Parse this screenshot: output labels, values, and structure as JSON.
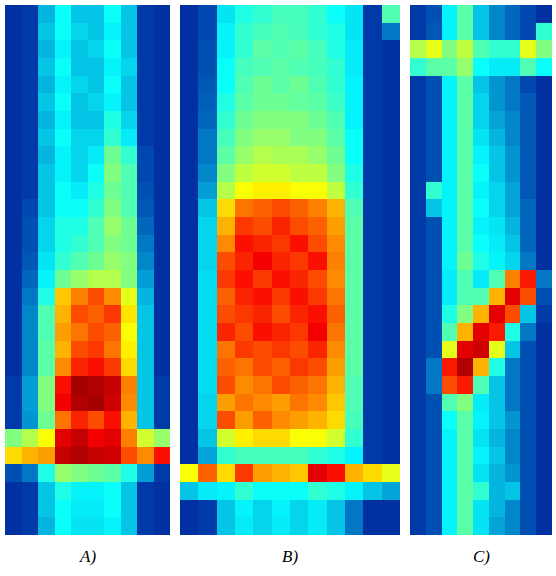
{
  "chart_data": [
    {
      "type": "heatmap",
      "title": "A)",
      "zlim": [
        0,
        1
      ],
      "tick_labels": false,
      "z": [
        [
          0.1,
          0.12,
          0.28,
          0.38,
          0.3,
          0.3,
          0.38,
          0.3,
          0.12,
          0.1
        ],
        [
          0.1,
          0.12,
          0.3,
          0.38,
          0.32,
          0.3,
          0.36,
          0.3,
          0.12,
          0.1
        ],
        [
          0.1,
          0.12,
          0.28,
          0.36,
          0.3,
          0.32,
          0.38,
          0.3,
          0.12,
          0.1
        ],
        [
          0.1,
          0.12,
          0.3,
          0.38,
          0.3,
          0.3,
          0.36,
          0.32,
          0.12,
          0.1
        ],
        [
          0.1,
          0.12,
          0.28,
          0.36,
          0.32,
          0.3,
          0.38,
          0.3,
          0.12,
          0.1
        ],
        [
          0.1,
          0.12,
          0.3,
          0.38,
          0.3,
          0.32,
          0.36,
          0.3,
          0.12,
          0.1
        ],
        [
          0.1,
          0.12,
          0.28,
          0.36,
          0.3,
          0.3,
          0.4,
          0.32,
          0.12,
          0.1
        ],
        [
          0.1,
          0.12,
          0.3,
          0.38,
          0.32,
          0.32,
          0.42,
          0.35,
          0.12,
          0.1
        ],
        [
          0.1,
          0.12,
          0.28,
          0.36,
          0.32,
          0.35,
          0.48,
          0.42,
          0.14,
          0.1
        ],
        [
          0.1,
          0.12,
          0.3,
          0.36,
          0.32,
          0.38,
          0.5,
          0.45,
          0.14,
          0.1
        ],
        [
          0.1,
          0.12,
          0.3,
          0.38,
          0.35,
          0.4,
          0.48,
          0.45,
          0.15,
          0.1
        ],
        [
          0.1,
          0.14,
          0.3,
          0.38,
          0.38,
          0.42,
          0.5,
          0.45,
          0.16,
          0.1
        ],
        [
          0.1,
          0.15,
          0.32,
          0.4,
          0.4,
          0.45,
          0.52,
          0.48,
          0.18,
          0.1
        ],
        [
          0.1,
          0.15,
          0.32,
          0.4,
          0.42,
          0.45,
          0.5,
          0.48,
          0.2,
          0.1
        ],
        [
          0.1,
          0.16,
          0.34,
          0.42,
          0.45,
          0.48,
          0.52,
          0.5,
          0.22,
          0.1
        ],
        [
          0.1,
          0.18,
          0.36,
          0.48,
          0.52,
          0.55,
          0.55,
          0.5,
          0.25,
          0.1
        ],
        [
          0.1,
          0.2,
          0.4,
          0.68,
          0.75,
          0.8,
          0.74,
          0.6,
          0.28,
          0.1
        ],
        [
          0.1,
          0.22,
          0.45,
          0.7,
          0.8,
          0.78,
          0.82,
          0.65,
          0.3,
          0.1
        ],
        [
          0.1,
          0.22,
          0.45,
          0.72,
          0.76,
          0.8,
          0.78,
          0.62,
          0.3,
          0.1
        ],
        [
          0.1,
          0.22,
          0.46,
          0.7,
          0.8,
          0.82,
          0.76,
          0.64,
          0.3,
          0.1
        ],
        [
          0.1,
          0.22,
          0.46,
          0.74,
          0.84,
          0.86,
          0.82,
          0.66,
          0.3,
          0.1
        ],
        [
          0.12,
          0.25,
          0.5,
          0.86,
          0.96,
          0.95,
          0.93,
          0.75,
          0.3,
          0.12
        ],
        [
          0.12,
          0.25,
          0.5,
          0.88,
          0.95,
          0.96,
          0.92,
          0.74,
          0.3,
          0.12
        ],
        [
          0.12,
          0.24,
          0.48,
          0.76,
          0.84,
          0.8,
          0.86,
          0.7,
          0.3,
          0.12
        ],
        [
          0.5,
          0.55,
          0.62,
          0.9,
          0.93,
          0.88,
          0.9,
          0.75,
          0.58,
          0.52
        ],
        [
          0.66,
          0.7,
          0.72,
          0.93,
          0.95,
          0.93,
          0.92,
          0.8,
          0.74,
          0.86
        ],
        [
          0.15,
          0.2,
          0.4,
          0.52,
          0.5,
          0.48,
          0.46,
          0.4,
          0.25,
          0.12
        ],
        [
          0.1,
          0.12,
          0.3,
          0.4,
          0.36,
          0.36,
          0.38,
          0.3,
          0.12,
          0.1
        ],
        [
          0.1,
          0.12,
          0.3,
          0.38,
          0.35,
          0.35,
          0.38,
          0.3,
          0.12,
          0.1
        ],
        [
          0.1,
          0.12,
          0.28,
          0.38,
          0.34,
          0.34,
          0.36,
          0.3,
          0.12,
          0.1
        ]
      ]
    },
    {
      "type": "heatmap",
      "title": "B)",
      "zlim": [
        0,
        1
      ],
      "tick_labels": false,
      "z": [
        [
          0.1,
          0.14,
          0.34,
          0.4,
          0.42,
          0.44,
          0.44,
          0.42,
          0.38,
          0.34,
          0.12,
          0.45
        ],
        [
          0.1,
          0.14,
          0.36,
          0.42,
          0.44,
          0.45,
          0.44,
          0.42,
          0.4,
          0.34,
          0.12,
          0.2
        ],
        [
          0.1,
          0.15,
          0.36,
          0.42,
          0.46,
          0.45,
          0.46,
          0.44,
          0.4,
          0.35,
          0.12,
          0.1
        ],
        [
          0.1,
          0.15,
          0.38,
          0.44,
          0.45,
          0.46,
          0.45,
          0.44,
          0.42,
          0.35,
          0.12,
          0.1
        ],
        [
          0.1,
          0.16,
          0.38,
          0.45,
          0.48,
          0.46,
          0.48,
          0.45,
          0.42,
          0.36,
          0.12,
          0.1
        ],
        [
          0.1,
          0.17,
          0.4,
          0.46,
          0.48,
          0.48,
          0.47,
          0.46,
          0.43,
          0.36,
          0.12,
          0.1
        ],
        [
          0.1,
          0.18,
          0.42,
          0.48,
          0.5,
          0.5,
          0.5,
          0.48,
          0.45,
          0.36,
          0.12,
          0.1
        ],
        [
          0.1,
          0.2,
          0.44,
          0.5,
          0.52,
          0.52,
          0.5,
          0.5,
          0.46,
          0.38,
          0.12,
          0.1
        ],
        [
          0.1,
          0.2,
          0.46,
          0.52,
          0.55,
          0.54,
          0.54,
          0.52,
          0.48,
          0.38,
          0.12,
          0.1
        ],
        [
          0.1,
          0.22,
          0.5,
          0.56,
          0.58,
          0.58,
          0.56,
          0.56,
          0.5,
          0.4,
          0.12,
          0.1
        ],
        [
          0.1,
          0.25,
          0.55,
          0.62,
          0.64,
          0.64,
          0.62,
          0.62,
          0.56,
          0.42,
          0.12,
          0.1
        ],
        [
          0.1,
          0.3,
          0.66,
          0.76,
          0.78,
          0.8,
          0.78,
          0.75,
          0.7,
          0.45,
          0.12,
          0.1
        ],
        [
          0.1,
          0.32,
          0.7,
          0.82,
          0.8,
          0.84,
          0.8,
          0.78,
          0.72,
          0.46,
          0.12,
          0.1
        ],
        [
          0.1,
          0.32,
          0.74,
          0.86,
          0.84,
          0.82,
          0.86,
          0.8,
          0.74,
          0.46,
          0.12,
          0.1
        ],
        [
          0.1,
          0.32,
          0.8,
          0.84,
          0.88,
          0.84,
          0.82,
          0.86,
          0.75,
          0.46,
          0.12,
          0.1
        ],
        [
          0.1,
          0.33,
          0.82,
          0.86,
          0.82,
          0.86,
          0.84,
          0.8,
          0.74,
          0.46,
          0.12,
          0.1
        ],
        [
          0.1,
          0.33,
          0.78,
          0.84,
          0.86,
          0.82,
          0.86,
          0.82,
          0.76,
          0.46,
          0.12,
          0.1
        ],
        [
          0.1,
          0.33,
          0.8,
          0.82,
          0.84,
          0.8,
          0.84,
          0.86,
          0.78,
          0.46,
          0.12,
          0.1
        ],
        [
          0.1,
          0.33,
          0.84,
          0.8,
          0.86,
          0.84,
          0.82,
          0.88,
          0.76,
          0.46,
          0.12,
          0.1
        ],
        [
          0.1,
          0.33,
          0.76,
          0.82,
          0.8,
          0.82,
          0.8,
          0.84,
          0.74,
          0.46,
          0.12,
          0.1
        ],
        [
          0.1,
          0.33,
          0.78,
          0.76,
          0.8,
          0.78,
          0.82,
          0.8,
          0.72,
          0.46,
          0.12,
          0.1
        ],
        [
          0.1,
          0.33,
          0.8,
          0.74,
          0.76,
          0.8,
          0.78,
          0.76,
          0.7,
          0.45,
          0.12,
          0.1
        ],
        [
          0.1,
          0.32,
          0.72,
          0.76,
          0.74,
          0.72,
          0.76,
          0.74,
          0.68,
          0.45,
          0.12,
          0.1
        ],
        [
          0.1,
          0.32,
          0.8,
          0.72,
          0.78,
          0.74,
          0.72,
          0.7,
          0.66,
          0.44,
          0.12,
          0.1
        ],
        [
          0.1,
          0.3,
          0.58,
          0.64,
          0.66,
          0.66,
          0.62,
          0.62,
          0.58,
          0.42,
          0.12,
          0.1
        ],
        [
          0.1,
          0.26,
          0.42,
          0.44,
          0.44,
          0.44,
          0.44,
          0.42,
          0.4,
          0.36,
          0.12,
          0.1
        ],
        [
          0.62,
          0.78,
          0.66,
          0.82,
          0.72,
          0.7,
          0.68,
          0.9,
          0.86,
          0.7,
          0.66,
          0.6
        ],
        [
          0.3,
          0.35,
          0.36,
          0.42,
          0.38,
          0.38,
          0.38,
          0.42,
          0.4,
          0.36,
          0.3,
          0.26
        ],
        [
          0.1,
          0.12,
          0.3,
          0.36,
          0.32,
          0.36,
          0.32,
          0.35,
          0.3,
          0.2,
          0.1,
          0.1
        ],
        [
          0.1,
          0.12,
          0.3,
          0.35,
          0.32,
          0.35,
          0.32,
          0.35,
          0.3,
          0.2,
          0.1,
          0.1
        ]
      ]
    },
    {
      "type": "heatmap",
      "title": "C)",
      "zlim": [
        0,
        1
      ],
      "tick_labels": false,
      "z": [
        [
          0.12,
          0.15,
          0.36,
          0.46,
          0.3,
          0.22,
          0.18,
          0.14,
          0.1
        ],
        [
          0.12,
          0.16,
          0.36,
          0.46,
          0.3,
          0.22,
          0.18,
          0.14,
          0.42
        ],
        [
          0.55,
          0.6,
          0.5,
          0.56,
          0.45,
          0.42,
          0.42,
          0.6,
          0.5
        ],
        [
          0.42,
          0.46,
          0.46,
          0.52,
          0.38,
          0.35,
          0.35,
          0.45,
          0.38
        ],
        [
          0.12,
          0.15,
          0.36,
          0.46,
          0.3,
          0.24,
          0.2,
          0.14,
          0.1
        ],
        [
          0.12,
          0.15,
          0.36,
          0.46,
          0.32,
          0.24,
          0.2,
          0.16,
          0.1
        ],
        [
          0.12,
          0.15,
          0.36,
          0.46,
          0.32,
          0.26,
          0.22,
          0.16,
          0.1
        ],
        [
          0.12,
          0.15,
          0.36,
          0.46,
          0.34,
          0.28,
          0.22,
          0.16,
          0.1
        ],
        [
          0.12,
          0.15,
          0.36,
          0.46,
          0.36,
          0.3,
          0.24,
          0.16,
          0.1
        ],
        [
          0.12,
          0.15,
          0.36,
          0.46,
          0.38,
          0.3,
          0.24,
          0.16,
          0.1
        ],
        [
          0.12,
          0.42,
          0.36,
          0.46,
          0.36,
          0.32,
          0.26,
          0.16,
          0.1
        ],
        [
          0.12,
          0.3,
          0.36,
          0.46,
          0.38,
          0.32,
          0.26,
          0.18,
          0.1
        ],
        [
          0.12,
          0.15,
          0.36,
          0.46,
          0.36,
          0.34,
          0.28,
          0.18,
          0.1
        ],
        [
          0.12,
          0.15,
          0.36,
          0.46,
          0.38,
          0.35,
          0.3,
          0.18,
          0.1
        ],
        [
          0.12,
          0.15,
          0.36,
          0.48,
          0.4,
          0.36,
          0.32,
          0.2,
          0.1
        ],
        [
          0.12,
          0.15,
          0.35,
          0.45,
          0.35,
          0.45,
          0.75,
          0.85,
          0.2
        ],
        [
          0.12,
          0.15,
          0.35,
          0.45,
          0.45,
          0.7,
          0.9,
          0.8,
          0.15
        ],
        [
          0.12,
          0.15,
          0.4,
          0.5,
          0.7,
          0.9,
          0.8,
          0.3,
          0.12
        ],
        [
          0.12,
          0.15,
          0.45,
          0.7,
          0.9,
          0.85,
          0.4,
          0.2,
          0.1
        ],
        [
          0.12,
          0.15,
          0.6,
          0.9,
          0.92,
          0.6,
          0.3,
          0.15,
          0.1
        ],
        [
          0.12,
          0.2,
          0.85,
          0.95,
          0.7,
          0.4,
          0.2,
          0.15,
          0.1
        ],
        [
          0.12,
          0.2,
          0.8,
          0.85,
          0.45,
          0.3,
          0.2,
          0.15,
          0.1
        ],
        [
          0.12,
          0.15,
          0.45,
          0.5,
          0.35,
          0.3,
          0.2,
          0.15,
          0.1
        ],
        [
          0.12,
          0.15,
          0.38,
          0.46,
          0.36,
          0.3,
          0.24,
          0.15,
          0.1
        ],
        [
          0.12,
          0.15,
          0.36,
          0.46,
          0.34,
          0.28,
          0.22,
          0.15,
          0.1
        ],
        [
          0.12,
          0.15,
          0.36,
          0.46,
          0.36,
          0.3,
          0.22,
          0.15,
          0.1
        ],
        [
          0.12,
          0.15,
          0.36,
          0.46,
          0.34,
          0.28,
          0.24,
          0.15,
          0.1
        ],
        [
          0.12,
          0.15,
          0.36,
          0.46,
          0.42,
          0.28,
          0.3,
          0.15,
          0.1
        ],
        [
          0.12,
          0.15,
          0.36,
          0.46,
          0.34,
          0.28,
          0.22,
          0.15,
          0.1
        ],
        [
          0.12,
          0.15,
          0.36,
          0.46,
          0.34,
          0.26,
          0.22,
          0.15,
          0.1
        ]
      ]
    }
  ]
}
